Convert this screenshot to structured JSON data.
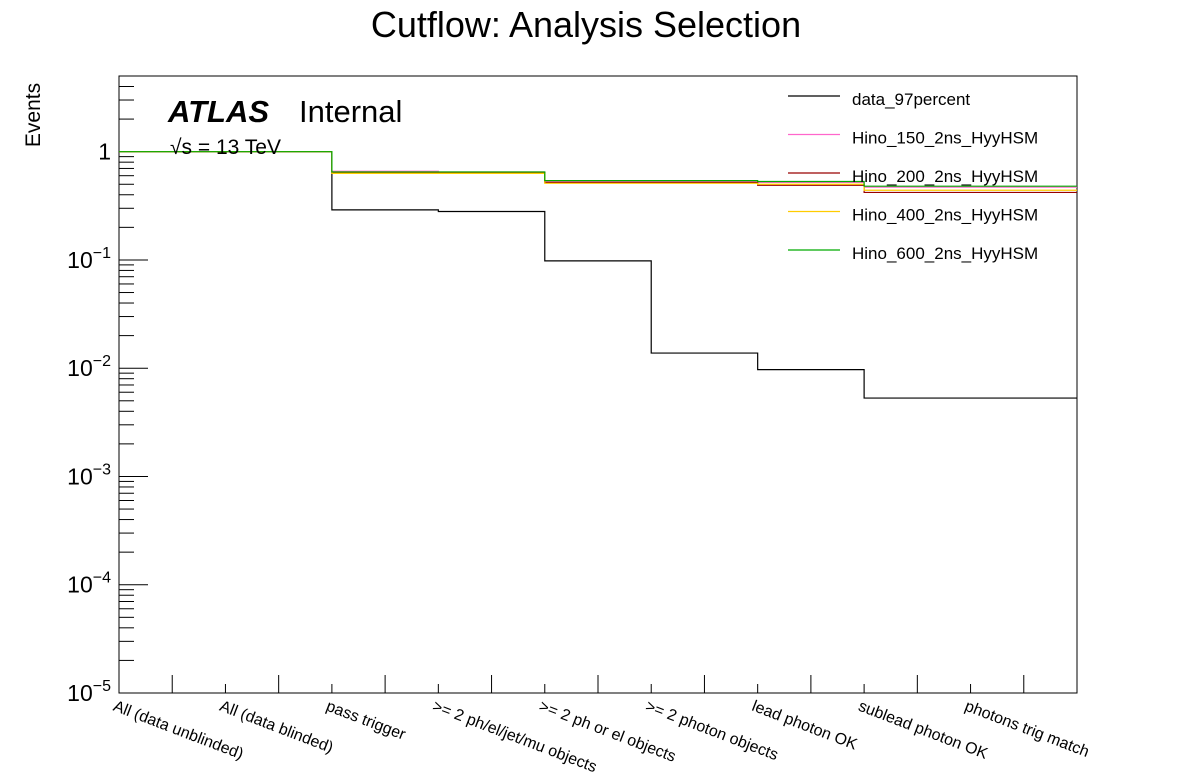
{
  "chart_data": {
    "type": "step",
    "title": "Cutflow: Analysis Selection",
    "ylabel": "Events",
    "xlabel": "",
    "yscale": "log",
    "ylim": [
      1e-05,
      5
    ],
    "y_ticks": [
      {
        "value": 1e-05,
        "base": "10",
        "exp": "−5"
      },
      {
        "value": 0.0001,
        "base": "10",
        "exp": "−4"
      },
      {
        "value": 0.001,
        "base": "10",
        "exp": "−3"
      },
      {
        "value": 0.01,
        "base": "10",
        "exp": "−2"
      },
      {
        "value": 0.1,
        "base": "10",
        "exp": "−1"
      },
      {
        "value": 1,
        "base": "1",
        "exp": ""
      }
    ],
    "categories": [
      "All (data unblinded)",
      "All (data blinded)",
      "pass trigger",
      ">= 2 ph/el/jet/mu objects",
      ">= 2 ph or el objects",
      ">= 2 photon objects",
      "lead photon OK",
      "sublead photon OK",
      "photons trig match"
    ],
    "series": [
      {
        "name": "data_97percent",
        "color": "#000000",
        "values": [
          1.0,
          1.0,
          0.29,
          0.28,
          0.098,
          0.0138,
          0.0097,
          0.0053,
          0.0053
        ]
      },
      {
        "name": "Hino_150_2ns_HyyHSM",
        "color": "#ff66cc",
        "values": [
          1.0,
          1.0,
          0.66,
          0.65,
          0.53,
          0.53,
          0.52,
          0.47,
          0.47
        ]
      },
      {
        "name": "Hino_200_2ns_HyyHSM",
        "color": "#990000",
        "values": [
          1.0,
          1.0,
          0.64,
          0.64,
          0.52,
          0.52,
          0.49,
          0.42,
          0.42
        ]
      },
      {
        "name": "Hino_400_2ns_HyyHSM",
        "color": "#ffcc00",
        "values": [
          1.0,
          1.0,
          0.63,
          0.63,
          0.51,
          0.51,
          0.5,
          0.44,
          0.44
        ]
      },
      {
        "name": "Hino_600_2ns_HyyHSM",
        "color": "#00aa00",
        "values": [
          1.0,
          1.0,
          0.65,
          0.65,
          0.54,
          0.54,
          0.53,
          0.48,
          0.48
        ]
      }
    ],
    "legend_position": "top-right",
    "atlas_label": "ATLAS",
    "atlas_status": "Internal",
    "energy_label": "√s = 13 TeV"
  }
}
